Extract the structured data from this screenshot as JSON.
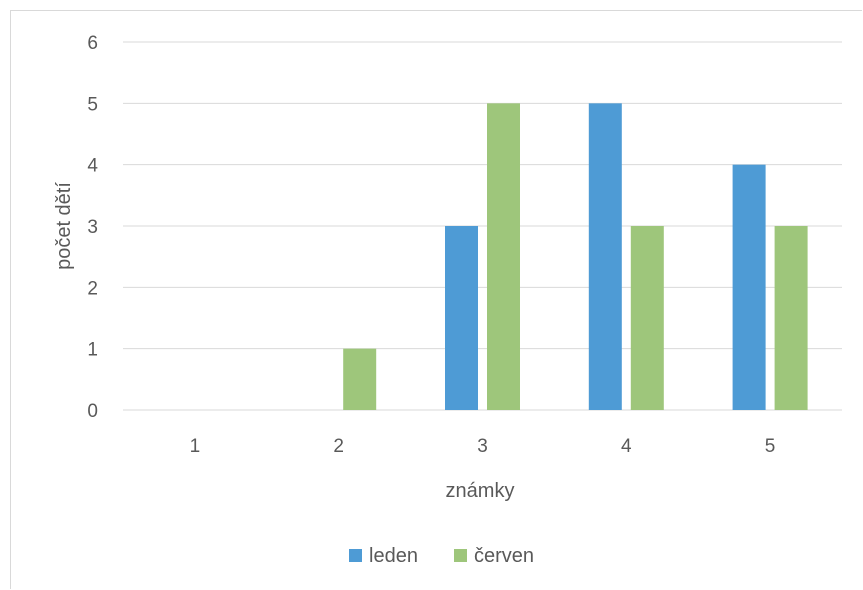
{
  "chart_data": {
    "type": "bar",
    "categories": [
      "1",
      "2",
      "3",
      "4",
      "5"
    ],
    "series": [
      {
        "name": "leden",
        "values": [
          0,
          0,
          3,
          5,
          4
        ],
        "color": "#4e9bd5"
      },
      {
        "name": "červen",
        "values": [
          0,
          1,
          5,
          3,
          3
        ],
        "color": "#9ec67b"
      }
    ],
    "xlabel": "známky",
    "ylabel": "počet dětí",
    "ylim": [
      0,
      6
    ],
    "yticks": [
      "0",
      "1",
      "2",
      "3",
      "4",
      "5",
      "6"
    ],
    "grid": true,
    "legend_position": "bottom"
  }
}
